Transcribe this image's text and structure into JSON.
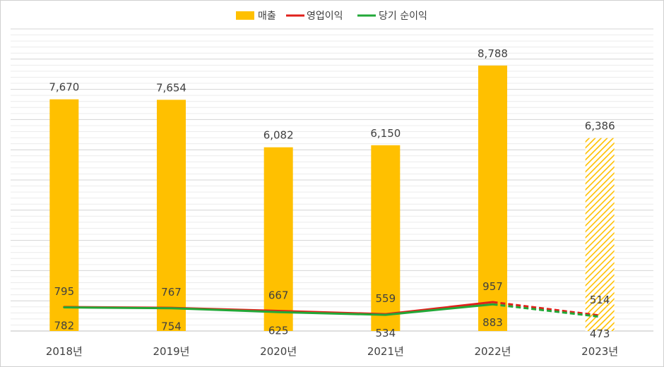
{
  "chart_data": {
    "type": "bar",
    "categories": [
      "2018년",
      "2019년",
      "2020년",
      "2021년",
      "2022년",
      "2023년"
    ],
    "series": [
      {
        "name": "매출",
        "type": "bar",
        "values": [
          7670,
          7654,
          6082,
          6150,
          8788,
          6386
        ],
        "color": "#FFC000"
      },
      {
        "name": "영업이익",
        "type": "line",
        "values": [
          795,
          767,
          667,
          559,
          957,
          514
        ],
        "color": "#E0201B"
      },
      {
        "name": "당기 순이익",
        "type": "line",
        "values": [
          782,
          754,
          625,
          534,
          883,
          473
        ],
        "color": "#22A838"
      }
    ],
    "bar_labels": [
      "7,670",
      "7,654",
      "6,082",
      "6,150",
      "8,788",
      "6,386"
    ],
    "line_labels_above": [
      "795",
      "767",
      "667",
      "559",
      "957",
      "514"
    ],
    "line_labels_below": [
      "782",
      "754",
      "625",
      "534",
      "883",
      "473"
    ],
    "forecast_categories": [
      "2023년"
    ],
    "ylim": [
      0,
      10000
    ],
    "grid": true,
    "legend_position": "top-center",
    "title": "",
    "xlabel": "",
    "ylabel": ""
  }
}
